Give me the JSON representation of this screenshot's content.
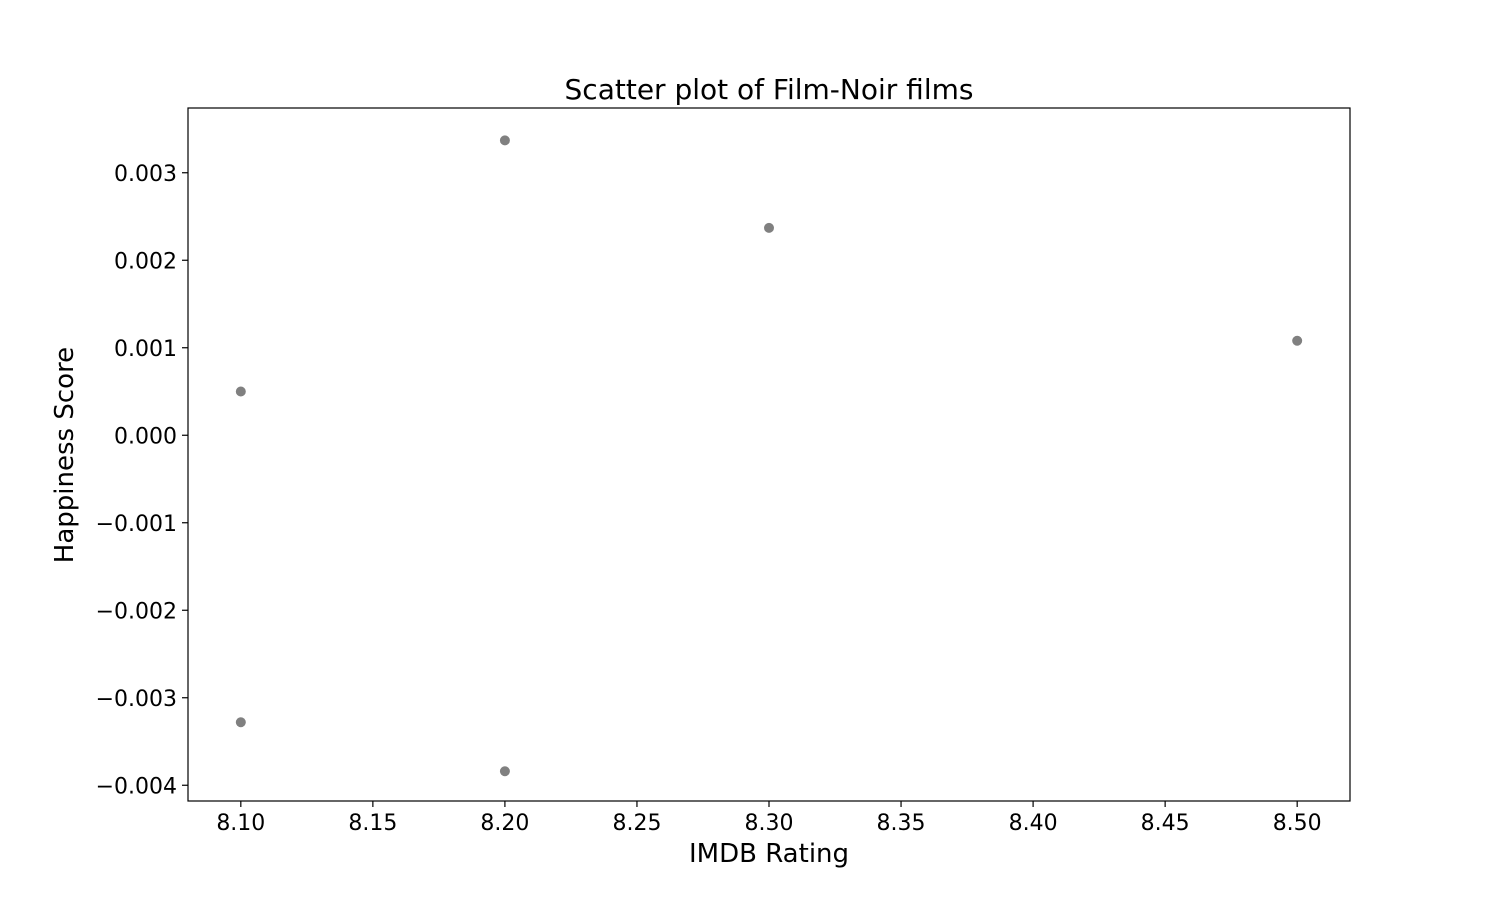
{
  "chart_data": {
    "type": "scatter",
    "title": "Scatter plot of Film-Noir films",
    "xlabel": "IMDB Rating",
    "ylabel": "Happiness Score",
    "xlim": [
      8.08,
      8.52
    ],
    "ylim": [
      -0.00418,
      0.00374
    ],
    "xticks": [
      8.1,
      8.15,
      8.2,
      8.25,
      8.3,
      8.35,
      8.4,
      8.45,
      8.5
    ],
    "xtick_labels": [
      "8.10",
      "8.15",
      "8.20",
      "8.25",
      "8.30",
      "8.35",
      "8.40",
      "8.45",
      "8.50"
    ],
    "yticks": [
      -0.004,
      -0.003,
      -0.002,
      -0.001,
      0.0,
      0.001,
      0.002,
      0.003
    ],
    "ytick_labels": [
      "−0.004",
      "−0.003",
      "−0.002",
      "−0.001",
      "0.000",
      "0.001",
      "0.002",
      "0.003"
    ],
    "grid": false,
    "marker_color": "#808080",
    "points": [
      {
        "x": 8.1,
        "y": 0.0005
      },
      {
        "x": 8.1,
        "y": -0.00328
      },
      {
        "x": 8.2,
        "y": 0.00337
      },
      {
        "x": 8.2,
        "y": -0.00384
      },
      {
        "x": 8.3,
        "y": 0.00237
      },
      {
        "x": 8.5,
        "y": 0.00108
      }
    ]
  }
}
